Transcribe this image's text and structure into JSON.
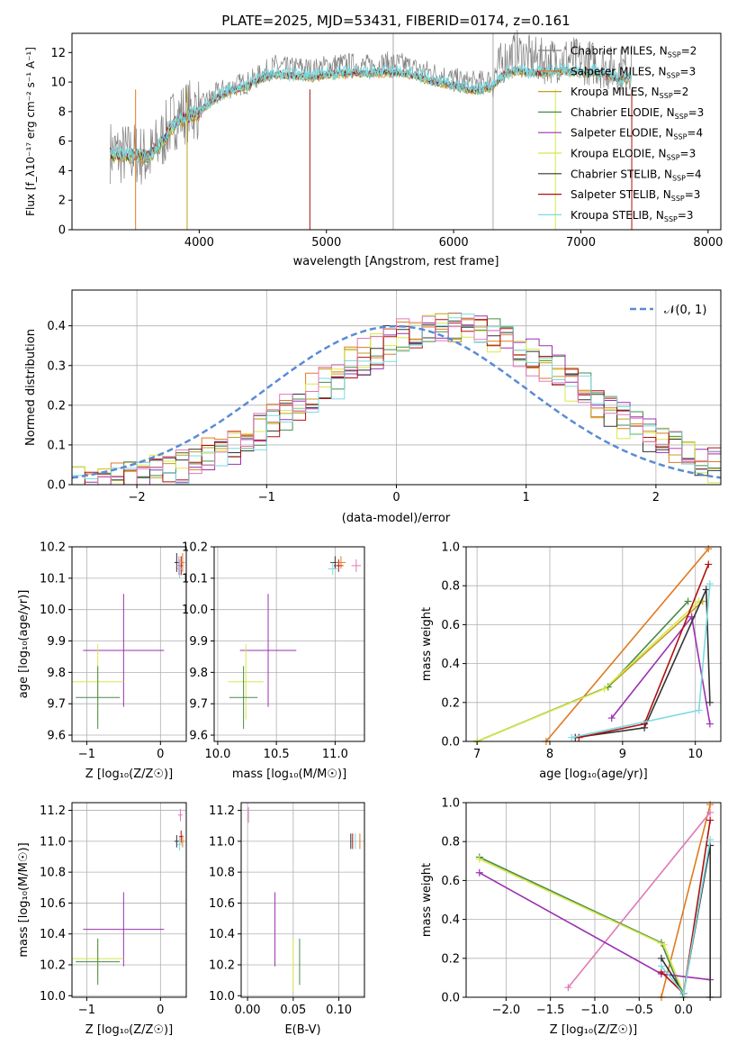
{
  "chart_data": [
    {
      "id": "spectrum",
      "type": "line",
      "title": "PLATE=2025, MJD=53431, FIBERID=0174, z=0.161",
      "xlabel": "wavelength [Angstrom, rest frame]",
      "ylabel": "Flux [f_λ10⁻¹⁷ erg cm⁻² s⁻¹ A⁻¹]",
      "xlim": [
        3000,
        8100
      ],
      "ylim": [
        0,
        13.3
      ],
      "xticks": [
        4000,
        5000,
        6000,
        7000,
        8000
      ],
      "yticks": [
        0,
        2,
        4,
        6,
        8,
        10,
        12
      ],
      "vlines": [
        5525,
        6310
      ],
      "legend_position": "upper right",
      "legend": [
        {
          "name": "Chabrier MILES, N_SSP=2",
          "color": "#808080"
        },
        {
          "name": "Salpeter MILES, N_SSP=3",
          "color": "#e07a1f"
        },
        {
          "name": "Kroupa MILES, N_SSP=2",
          "color": "#c0a020"
        },
        {
          "name": "Chabrier ELODIE, N_SSP=3",
          "color": "#4a8a4a"
        },
        {
          "name": "Salpeter ELODIE, N_SSP=4",
          "color": "#9b30b0"
        },
        {
          "name": "Kroupa ELODIE, N_SSP=3",
          "color": "#d8e84a"
        },
        {
          "name": "Chabrier STELIB, N_SSP=4",
          "color": "#333333"
        },
        {
          "name": "Salpeter STELIB, N_SSP=3",
          "color": "#b01010"
        },
        {
          "name": "Kroupa STELIB, N_SSP=3",
          "color": "#7adbe0"
        }
      ],
      "x": [
        3300,
        3400,
        3500,
        3600,
        3700,
        3800,
        3900,
        4000,
        4100,
        4200,
        4300,
        4400,
        4500,
        4600,
        4700,
        4800,
        4900,
        5000,
        5100,
        5200,
        5300,
        5400,
        5500,
        5600,
        5700,
        5800,
        5900,
        6000,
        6100,
        6200,
        6300,
        6400,
        6500,
        6600,
        6700,
        6800,
        6900,
        7000,
        7100,
        7200,
        7300,
        7400
      ],
      "series": [
        {
          "values": [
            5.3,
            5.1,
            5.2,
            4.8,
            6.0,
            7.5,
            8.0,
            8.2,
            9.0,
            9.5,
            9.8,
            10.0,
            10.6,
            11.1,
            10.9,
            11.0,
            10.8,
            11.1,
            11.2,
            11.2,
            11.1,
            11.2,
            11.3,
            11.2,
            10.9,
            10.7,
            10.5,
            10.2,
            10.0,
            10.0,
            10.2,
            11.5,
            12.0,
            11.6,
            11.4,
            11.5,
            11.6,
            11.4,
            11.3,
            11.0,
            10.8,
            11.0
          ]
        },
        {
          "values": [
            5.1,
            5.0,
            5.0,
            4.9,
            5.8,
            7.1,
            7.6,
            7.9,
            8.7,
            9.2,
            9.5,
            9.8,
            10.3,
            10.5,
            10.4,
            10.4,
            10.3,
            10.5,
            10.5,
            10.6,
            10.5,
            10.6,
            10.6,
            10.6,
            10.4,
            10.1,
            9.9,
            9.7,
            9.5,
            9.4,
            9.6,
            10.5,
            10.8,
            10.6,
            10.6,
            10.7,
            10.7,
            10.6,
            10.7,
            10.4,
            10.2,
            10.3
          ]
        }
      ]
    },
    {
      "id": "residuals",
      "type": "step",
      "xlabel": "(data-model)/error",
      "ylabel": "Normed distribution",
      "xlim": [
        -2.5,
        2.5
      ],
      "ylim": [
        0,
        0.49
      ],
      "xticks": [
        -2,
        -1,
        0,
        1,
        2
      ],
      "yticks": [
        0.0,
        0.1,
        0.2,
        0.3,
        0.4
      ],
      "legend": [
        {
          "name": "𝒩(0, 1)",
          "color": "#5b8bd4"
        }
      ],
      "legend_position": "upper right"
    },
    {
      "id": "z-age",
      "type": "errorbar",
      "xlabel": "Z [log₁₀(Z/Z☉)]",
      "ylabel": "age  [log₁₀(age/yr)]",
      "xlim": [
        -1.2,
        0.35
      ],
      "ylim": [
        9.58,
        10.2
      ],
      "xticks": [
        -1,
        0
      ],
      "yticks": [
        9.6,
        9.7,
        9.8,
        9.9,
        10.0,
        10.1,
        10.2
      ]
    },
    {
      "id": "mass-age",
      "type": "errorbar",
      "xlabel": "mass [log₁₀(M/M☉)]",
      "xlim": [
        9.97,
        11.25
      ],
      "ylim": [
        9.58,
        10.2
      ],
      "xticks": [
        10.0,
        10.5,
        11.0
      ],
      "yticks": [
        9.6,
        9.7,
        9.8,
        9.9,
        10.0,
        10.1,
        10.2
      ]
    },
    {
      "id": "age-weight",
      "type": "line",
      "xlabel": "age  [log₁₀(age/yr)]",
      "ylabel": "mass weight",
      "xlim": [
        6.85,
        10.35
      ],
      "ylim": [
        0,
        1.0
      ],
      "xticks": [
        7,
        8,
        9,
        10
      ],
      "yticks": [
        0.0,
        0.2,
        0.4,
        0.6,
        0.8,
        1.0
      ],
      "series": [
        {
          "color": "#e07a1f",
          "x": [
            7.95,
            10.18
          ],
          "y": [
            0.0,
            0.99
          ]
        },
        {
          "color": "#c0a020",
          "x": [
            7.0,
            8.8,
            10.1
          ],
          "y": [
            0.0,
            0.28,
            0.72
          ]
        },
        {
          "color": "#4a8a4a",
          "x": [
            7.0,
            8.8,
            9.9
          ],
          "y": [
            0.0,
            0.28,
            0.72
          ]
        },
        {
          "color": "#d8e84a",
          "x": [
            7.0,
            8.75,
            10.05
          ],
          "y": [
            0.0,
            0.27,
            0.72
          ]
        },
        {
          "color": "#9b30b0",
          "x": [
            8.85,
            9.95,
            10.2
          ],
          "y": [
            0.12,
            0.64,
            0.09
          ]
        },
        {
          "color": "#333333",
          "x": [
            8.35,
            9.3,
            10.15,
            10.2
          ],
          "y": [
            0.02,
            0.07,
            0.78,
            0.2
          ]
        },
        {
          "color": "#b01010",
          "x": [
            8.4,
            9.3,
            10.18
          ],
          "y": [
            0.02,
            0.09,
            0.91
          ]
        },
        {
          "color": "#7adbe0",
          "x": [
            8.3,
            10.05,
            10.2
          ],
          "y": [
            0.02,
            0.16,
            0.81
          ]
        }
      ]
    },
    {
      "id": "z-mass",
      "type": "errorbar",
      "xlabel": "Z [log₁₀(Z/Z☉)]",
      "ylabel": "mass [log₁₀(M/M☉)]",
      "xlim": [
        -1.2,
        0.35
      ],
      "ylim": [
        9.99,
        11.25
      ],
      "xticks": [
        -1,
        0
      ],
      "yticks": [
        10.0,
        10.2,
        10.4,
        10.6,
        10.8,
        11.0,
        11.2
      ]
    },
    {
      "id": "ebv-mass",
      "type": "errorbar",
      "xlabel": "E(B-V)",
      "xlim": [
        -0.007,
        0.128
      ],
      "ylim": [
        9.99,
        11.25
      ],
      "xticks": [
        0.0,
        0.05,
        0.1
      ],
      "yticks": [
        10.0,
        10.2,
        10.4,
        10.6,
        10.8,
        11.0,
        11.2
      ]
    },
    {
      "id": "z-weight",
      "type": "line",
      "xlabel": "Z [log₁₀(Z/Z☉)]",
      "ylabel": "mass weight",
      "xlim": [
        -2.45,
        0.42
      ],
      "ylim": [
        0,
        1.0
      ],
      "xticks": [
        -2.0,
        -1.5,
        -1.0,
        -0.5,
        0.0
      ],
      "yticks": [
        0.0,
        0.2,
        0.4,
        0.6,
        0.8,
        1.0
      ],
      "series": [
        {
          "color": "#e07a1f",
          "x": [
            -0.25,
            0.3
          ],
          "y": [
            0.0,
            0.99
          ]
        },
        {
          "color": "#e078b8",
          "x": [
            -1.3,
            0.3
          ],
          "y": [
            0.05,
            0.95
          ]
        },
        {
          "color": "#4a8a4a",
          "x": [
            -2.3,
            -0.25,
            0.0
          ],
          "y": [
            0.72,
            0.28,
            0.0
          ]
        },
        {
          "color": "#d8e84a",
          "x": [
            -2.3,
            -0.22,
            0.0
          ],
          "y": [
            0.71,
            0.27,
            0.02
          ]
        },
        {
          "color": "#9b30b0",
          "x": [
            -2.3,
            -0.25,
            0.3
          ],
          "y": [
            0.64,
            0.12,
            0.09
          ]
        },
        {
          "color": "#333333",
          "x": [
            -0.25,
            0.0,
            0.3,
            0.3
          ],
          "y": [
            0.2,
            0.02,
            0.78,
            0.0
          ]
        },
        {
          "color": "#b01010",
          "x": [
            -0.25,
            0.0,
            0.3
          ],
          "y": [
            0.13,
            0.02,
            0.91
          ]
        },
        {
          "color": "#7adbe0",
          "x": [
            -0.25,
            0.0,
            0.3
          ],
          "y": [
            0.16,
            0.02,
            0.81
          ]
        }
      ]
    }
  ]
}
